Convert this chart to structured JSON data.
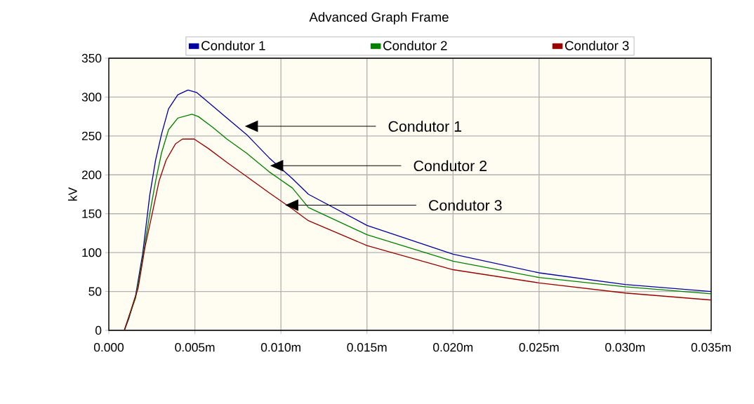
{
  "chart_data": {
    "type": "line",
    "title": "Advanced Graph Frame",
    "ylabel": "kV",
    "xlim": [
      0,
      0.035
    ],
    "ylim": [
      0,
      350
    ],
    "xticks": [
      {
        "value": 0,
        "label": "0.000"
      },
      {
        "value": 0.005,
        "label": "0.005m"
      },
      {
        "value": 0.01,
        "label": "0.010m"
      },
      {
        "value": 0.015,
        "label": "0.015m"
      },
      {
        "value": 0.02,
        "label": "0.020m"
      },
      {
        "value": 0.025,
        "label": "0.025m"
      },
      {
        "value": 0.03,
        "label": "0.030m"
      },
      {
        "value": 0.035,
        "label": "0.035m"
      }
    ],
    "yticks": [
      0,
      50,
      100,
      150,
      200,
      250,
      300,
      350
    ],
    "grid": true,
    "legend": "top",
    "series": [
      {
        "name": "Condutor 1",
        "color": "#0000a0",
        "x": [
          0.0009,
          0.00116,
          0.00156,
          0.00197,
          0.00238,
          0.00272,
          0.00306,
          0.00347,
          0.00401,
          0.0046,
          0.0051,
          0.00591,
          0.00686,
          0.008,
          0.00931,
          0.01067,
          0.0116,
          0.015,
          0.02,
          0.025,
          0.03,
          0.035
        ],
        "values": [
          0,
          15,
          45,
          99,
          174,
          219,
          252,
          285,
          303,
          309,
          306,
          291,
          273,
          252,
          222,
          195,
          175,
          135,
          98,
          74,
          59,
          50
        ]
      },
      {
        "name": "Condutor 2",
        "color": "#008000",
        "x": [
          0.0009,
          0.00156,
          0.00197,
          0.00238,
          0.00272,
          0.00306,
          0.00347,
          0.00401,
          0.00483,
          0.0052,
          0.00605,
          0.00686,
          0.008,
          0.00931,
          0.01067,
          0.0116,
          0.015,
          0.02,
          0.025,
          0.03,
          0.035
        ],
        "values": [
          0,
          42,
          93,
          150,
          192,
          228,
          258,
          273,
          278,
          275,
          261,
          246,
          228,
          204,
          183,
          158,
          123,
          89,
          68,
          56,
          47
        ]
      },
      {
        "name": "Condutor 3",
        "color": "#990000",
        "x": [
          0.0009,
          0.0017,
          0.00211,
          0.00252,
          0.00292,
          0.00333,
          0.00388,
          0.00428,
          0.00496,
          0.00578,
          0.00686,
          0.008,
          0.00931,
          0.01067,
          0.0116,
          0.015,
          0.02,
          0.025,
          0.03,
          0.035
        ],
        "values": [
          0,
          54,
          108,
          150,
          192,
          219,
          240,
          246,
          246,
          234,
          216,
          198,
          177,
          156,
          141,
          109,
          78,
          61,
          48,
          39
        ]
      }
    ],
    "annotations": [
      "Condutor 1",
      "Condutor 2",
      "Condutor 3"
    ]
  }
}
